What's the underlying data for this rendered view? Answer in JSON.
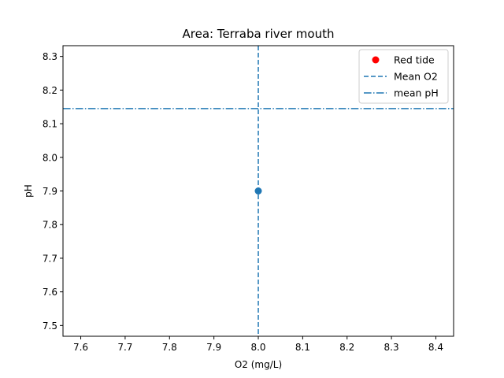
{
  "chart_data": {
    "type": "scatter",
    "title": "Area: Terraba river mouth",
    "xlabel": "O2 (mg/L)",
    "ylabel": "pH",
    "xlim": [
      7.56,
      8.44
    ],
    "ylim": [
      7.468,
      8.332
    ],
    "xticks": [
      "7.6",
      "7.7",
      "7.8",
      "7.9",
      "8.0",
      "8.1",
      "8.2",
      "8.3",
      "8.4"
    ],
    "yticks": [
      "7.5",
      "7.6",
      "7.7",
      "7.8",
      "7.9",
      "8.0",
      "8.1",
      "8.2",
      "8.3"
    ],
    "grid": false,
    "legend_position": "top-right",
    "points": [
      {
        "x": 8.0,
        "y": 7.9,
        "color": "#1f77b4"
      }
    ],
    "reference_lines": [
      {
        "orientation": "vertical",
        "value": 8.0,
        "style": "dashed",
        "color": "#1f77b4"
      },
      {
        "orientation": "horizontal",
        "value": 8.145,
        "style": "dashdot",
        "color": "#1f77b4"
      }
    ],
    "legend": [
      {
        "label": "Red tide",
        "marker": "dot",
        "color": "#ff0000"
      },
      {
        "label": "Mean O2",
        "marker": "dashed",
        "color": "#1f77b4"
      },
      {
        "label": "mean pH",
        "marker": "dashdot",
        "color": "#1f77b4"
      }
    ]
  }
}
